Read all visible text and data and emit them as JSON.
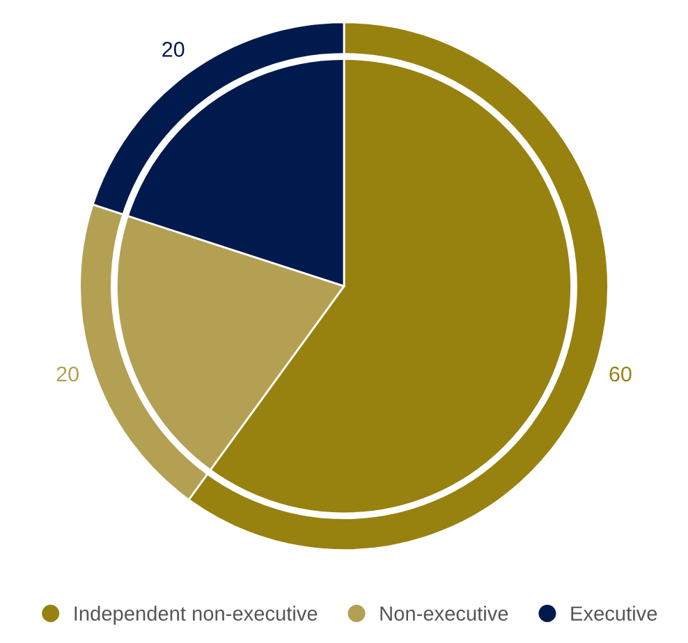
{
  "chart_data": {
    "type": "pie",
    "categories": [
      "Independent non-executive",
      "Non-executive",
      "Executive"
    ],
    "values": [
      60,
      20,
      20
    ],
    "colors": [
      "#97820f",
      "#b3a052",
      "#001a4d"
    ],
    "data_labels": true,
    "legend": "bottom"
  }
}
